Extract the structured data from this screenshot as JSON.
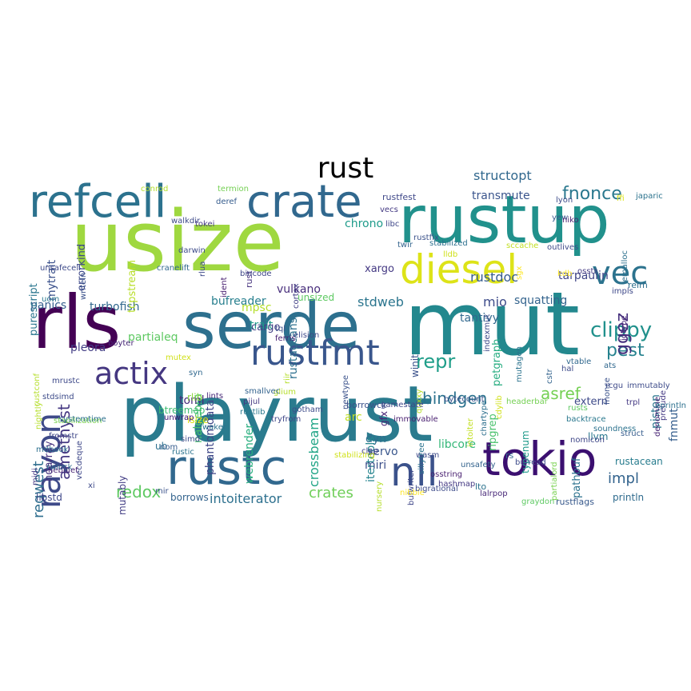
{
  "title": "rust",
  "words": [
    {
      "text": "playrust",
      "color": "#2a7b8e"
    },
    {
      "text": "usize",
      "color": "#9fd840"
    },
    {
      "text": "mut",
      "color": "#23888e"
    },
    {
      "text": "rustup",
      "color": "#21918c"
    },
    {
      "text": "serde",
      "color": "#2d708e"
    },
    {
      "text": "rls",
      "color": "#440154"
    },
    {
      "text": "rustc",
      "color": "#31688e"
    },
    {
      "text": "tokio",
      "color": "#3b0f70"
    },
    {
      "text": "refcell",
      "color": "#2c728e"
    },
    {
      "text": "crate",
      "color": "#31688e"
    },
    {
      "text": "diesel",
      "color": "#dde318"
    },
    {
      "text": "rustfmt",
      "color": "#39568c"
    },
    {
      "text": "rayon",
      "color": "#3e4a89"
    },
    {
      "text": "actix",
      "color": "#453781"
    },
    {
      "text": "nll",
      "color": "#3b528b"
    },
    {
      "text": "vec",
      "color": "#2c738e"
    },
    {
      "text": "clippy",
      "color": "#21918c"
    },
    {
      "text": "repr",
      "color": "#1f9e89"
    },
    {
      "text": "pest",
      "color": "#26828e"
    },
    {
      "text": "fnonce",
      "color": "#2a788e"
    },
    {
      "text": "ggez",
      "color": "#46307e"
    },
    {
      "text": "bindgen",
      "color": "#2c728e"
    },
    {
      "text": "asref",
      "color": "#75d054"
    },
    {
      "text": "redox",
      "color": "#5ec962"
    },
    {
      "text": "crates",
      "color": "#6ece58"
    },
    {
      "text": "impl",
      "color": "#33638d"
    },
    {
      "text": "amethyst",
      "color": "#453882"
    },
    {
      "text": "reqwest",
      "color": "#2e6e8e"
    },
    {
      "text": "intoiterator",
      "color": "#2d708e"
    },
    {
      "text": "structopt",
      "color": "#31688e"
    },
    {
      "text": "transmute",
      "color": "#3a548c"
    },
    {
      "text": "rustdoc",
      "color": "#365c8d"
    },
    {
      "text": "stdweb",
      "color": "#2b758e"
    },
    {
      "text": "mio",
      "color": "#3e4c8a"
    },
    {
      "text": "crossbeam",
      "color": "#20a486"
    },
    {
      "text": "phantomdata",
      "color": "#3f4788"
    },
    {
      "text": "webrender",
      "color": "#29af7f"
    },
    {
      "text": "trait",
      "color": "#1f998a"
    },
    {
      "text": "mpsc",
      "color": "#b5de2b"
    },
    {
      "text": "nalgebra",
      "color": "#4ac16d"
    },
    {
      "text": "partialeq",
      "color": "#5ec962"
    },
    {
      "text": "bufreader",
      "color": "#277f8e"
    },
    {
      "text": "toml",
      "color": "#472c7a"
    },
    {
      "text": "panics",
      "color": "#355f8d"
    },
    {
      "text": "turbofish",
      "color": "#31688e"
    },
    {
      "text": "pleora",
      "color": "#433e85"
    },
    {
      "text": "mytrait",
      "color": "#3b518b"
    },
    {
      "text": "errorkind",
      "color": "#3e4989"
    },
    {
      "text": "tcpstream",
      "color": "#b8de29"
    },
    {
      "text": "purescript",
      "color": "#2a768e"
    },
    {
      "text": "vulkano",
      "color": "#472d7b"
    },
    {
      "text": "cargo",
      "color": "#424086"
    },
    {
      "text": "rustaceans",
      "color": "#2d708e"
    },
    {
      "text": "chrono",
      "color": "#1e9b8a"
    },
    {
      "text": "xargo",
      "color": "#443983"
    },
    {
      "text": "tantivy",
      "color": "#31688e"
    },
    {
      "text": "squatting",
      "color": "#33638d"
    },
    {
      "text": "tarpaulin",
      "color": "#404688"
    },
    {
      "text": "petgraph",
      "color": "#27ad81"
    },
    {
      "text": "ripgrep",
      "color": "#4ac16d"
    },
    {
      "text": "pathbuf",
      "color": "#2c728e"
    },
    {
      "text": "typenum",
      "color": "#1f9a8a"
    },
    {
      "text": "extern",
      "color": "#3e4a89"
    },
    {
      "text": "piston",
      "color": "#2a778e"
    },
    {
      "text": "fnmut",
      "color": "#355e8d"
    },
    {
      "text": "llvm",
      "color": "#2a788e"
    },
    {
      "text": "rustacean",
      "color": "#287c8e"
    },
    {
      "text": "println",
      "color": "#2f6b8e"
    },
    {
      "text": "servo",
      "color": "#39568c"
    },
    {
      "text": "dyn",
      "color": "#2e6f8e"
    },
    {
      "text": "arc",
      "color": "#c2df23"
    },
    {
      "text": "libcore",
      "color": "#35b779"
    },
    {
      "text": "itertools",
      "color": "#25848e"
    },
    {
      "text": "miri",
      "color": "#3c4f8a"
    },
    {
      "text": "gfx",
      "color": "#482475"
    },
    {
      "text": "winit",
      "color": "#3b528b"
    },
    {
      "text": "btreemap",
      "color": "#3fbc73"
    },
    {
      "text": "rlib",
      "color": "#8fd744"
    },
    {
      "text": "isize",
      "color": "#dde318"
    },
    {
      "text": "ub",
      "color": "#2d708e"
    },
    {
      "text": "ndarray",
      "color": "#46327e"
    },
    {
      "text": "mutably",
      "color": "#433e85"
    },
    {
      "text": "libstd",
      "color": "#3f4889"
    },
    {
      "text": "borrows",
      "color": "#33638d"
    },
    {
      "text": "rustflags",
      "color": "#38598c"
    },
    {
      "text": "lto",
      "color": "#2c728e"
    },
    {
      "text": "rustfest",
      "color": "#3f4889"
    },
    {
      "text": "vecs",
      "color": "#443a83"
    },
    {
      "text": "yew",
      "color": "#38598c"
    },
    {
      "text": "niko",
      "color": "#481f70"
    },
    {
      "text": "japaric",
      "color": "#2c738e"
    },
    {
      "text": "relm",
      "color": "#2e6e8e"
    },
    {
      "text": "rs",
      "color": "#31688e"
    },
    {
      "text": "bufread",
      "color": "#3e4c8a"
    },
    {
      "text": "borrowck",
      "color": "#3b528b"
    },
    {
      "text": "clap",
      "color": "#424186"
    },
    {
      "text": "glium",
      "color": "#b5de2b"
    },
    {
      "text": "smallvec",
      "color": "#33638d"
    },
    {
      "text": "tql",
      "color": "#3c508b"
    },
    {
      "text": "ferris",
      "color": "#482173"
    },
    {
      "text": "gotham",
      "color": "#3e4c8a"
    },
    {
      "text": "pijul",
      "color": "#453882"
    },
    {
      "text": "rustlib",
      "color": "#2a788e"
    },
    {
      "text": "lints",
      "color": "#482878"
    },
    {
      "text": "tryfrom",
      "color": "#3f4788"
    },
    {
      "text": "waker",
      "color": "#2c728e"
    },
    {
      "text": "nom",
      "color": "#365c8d"
    },
    {
      "text": "unwrap",
      "color": "#3b0f70"
    },
    {
      "text": "rust",
      "color": "#46327e"
    },
    {
      "text": "bincode",
      "color": "#3f4788"
    },
    {
      "text": "cranelift",
      "color": "#31688e"
    },
    {
      "text": "walkdir",
      "color": "#3e4a89"
    },
    {
      "text": "tokei",
      "color": "#443983"
    },
    {
      "text": "termion",
      "color": "#75d054"
    },
    {
      "text": "conrod",
      "color": "#b5de2b"
    },
    {
      "text": "deref",
      "color": "#365c8d"
    },
    {
      "text": "twir",
      "color": "#33638d"
    },
    {
      "text": "unsized",
      "color": "#5ec962"
    },
    {
      "text": "stabilization",
      "color": "#7ad151"
    },
    {
      "text": "rustconf",
      "color": "#b5de2b"
    },
    {
      "text": "mdbook",
      "color": "#2d708e"
    },
    {
      "text": "vecdeque",
      "color": "#3f4889"
    },
    {
      "text": "nebulet",
      "color": "#482475"
    },
    {
      "text": "unsafecell",
      "color": "#3e4a89"
    },
    {
      "text": "uom",
      "color": "#2a788e"
    },
    {
      "text": "writeln",
      "color": "#3b528b"
    },
    {
      "text": "cortex",
      "color": "#424186"
    },
    {
      "text": "ident",
      "color": "#481f70"
    },
    {
      "text": "darwin",
      "color": "#3e4c8a"
    },
    {
      "text": "kdb",
      "color": "#fde725"
    },
    {
      "text": "impls",
      "color": "#3e4989"
    },
    {
      "text": "osstr",
      "color": "#443a83"
    },
    {
      "text": "sccache",
      "color": "#c2df23"
    },
    {
      "text": "jemalloc",
      "color": "#2d708e"
    },
    {
      "text": "idtype",
      "color": "#482878"
    },
    {
      "text": "outlives",
      "color": "#3e4a89"
    },
    {
      "text": "lyon",
      "color": "#3e4c8a"
    },
    {
      "text": "ffi",
      "color": "#dde318"
    },
    {
      "text": "sgx",
      "color": "#fde725"
    },
    {
      "text": "lldb",
      "color": "#d0e11c"
    },
    {
      "text": "libc",
      "color": "#3f4788"
    },
    {
      "text": "rustfix",
      "color": "#3b528b"
    },
    {
      "text": "stabilized",
      "color": "#2d708e"
    },
    {
      "text": "vtable",
      "color": "#31688e"
    },
    {
      "text": "cstr",
      "color": "#33638d"
    },
    {
      "text": "hal",
      "color": "#3e4c8a"
    },
    {
      "text": "ats",
      "color": "#31688e"
    },
    {
      "text": "rcgu",
      "color": "#3e4989"
    },
    {
      "text": "trpl",
      "color": "#443983"
    },
    {
      "text": "rusts",
      "color": "#5ec962"
    },
    {
      "text": "struct",
      "color": "#365c8d"
    },
    {
      "text": "nomicon",
      "color": "#3f4788"
    },
    {
      "text": "soundness",
      "color": "#2c728e"
    },
    {
      "text": "backtrace",
      "color": "#2a788e"
    },
    {
      "text": "mutagen",
      "color": "#2c738e"
    },
    {
      "text": "intoiter",
      "color": "#c2df23"
    },
    {
      "text": "chartype",
      "color": "#2d708e"
    },
    {
      "text": "headerbar",
      "color": "#75d054"
    },
    {
      "text": "bytecount",
      "color": "#3b528b"
    },
    {
      "text": "quxxy",
      "color": "#b5de2b"
    },
    {
      "text": "wasm",
      "color": "#3e4a89"
    },
    {
      "text": "osstring",
      "color": "#481f70"
    },
    {
      "text": "bufwriter",
      "color": "#3f4788"
    },
    {
      "text": "unsafety",
      "color": "#33638d"
    },
    {
      "text": "hashmap",
      "color": "#443983"
    },
    {
      "text": "lalrpop",
      "color": "#482878"
    },
    {
      "text": "graydon",
      "color": "#5ec962"
    },
    {
      "text": "partialord",
      "color": "#7ad151"
    },
    {
      "text": "nursery",
      "color": "#b5de2b"
    },
    {
      "text": "nibble",
      "color": "#fde725"
    },
    {
      "text": "bigrational",
      "color": "#3e4c8a"
    },
    {
      "text": "immovable",
      "color": "#481f70"
    },
    {
      "text": "gamestate",
      "color": "#3f4788"
    },
    {
      "text": "newtype",
      "color": "#3b528b"
    },
    {
      "text": "sillytree",
      "color": "#2c738e"
    },
    {
      "text": "cdylib",
      "color": "#d0e11c"
    },
    {
      "text": "indexmut",
      "color": "#3e4a89"
    },
    {
      "text": "fnonce",
      "color": "#3b528b"
    },
    {
      "text": "immutably",
      "color": "#3e4c8a"
    },
    {
      "text": "prelude",
      "color": "#443983"
    },
    {
      "text": "denomine",
      "color": "#482475"
    },
    {
      "text": "eprintln",
      "color": "#2d708e"
    },
    {
      "text": "rlua",
      "color": "#3e4a89"
    },
    {
      "text": "syn",
      "color": "#31688e"
    },
    {
      "text": "mutex",
      "color": "#d0e11c"
    },
    {
      "text": "boyter",
      "color": "#482878"
    },
    {
      "text": "mrustc",
      "color": "#3e4989"
    },
    {
      "text": "systemtime",
      "color": "#2d708e"
    },
    {
      "text": "nightly",
      "color": "#b5de2b"
    },
    {
      "text": "stdsimd",
      "color": "#3e4c8a"
    },
    {
      "text": "fromstr",
      "color": "#3f4788"
    },
    {
      "text": "midi",
      "color": "#443983"
    },
    {
      "text": "rwlock",
      "color": "#31688e"
    },
    {
      "text": "xi",
      "color": "#3e4a89"
    },
    {
      "text": "mir",
      "color": "#3b528b"
    },
    {
      "text": "rustic",
      "color": "#2c738e"
    },
    {
      "text": "simd",
      "color": "#3e4c8a"
    },
    {
      "text": "stabilizing",
      "color": "#d0e11c"
    },
    {
      "text": "riir",
      "color": "#b5de2b"
    },
    {
      "text": "elision",
      "color": "#3e4989"
    }
  ]
}
